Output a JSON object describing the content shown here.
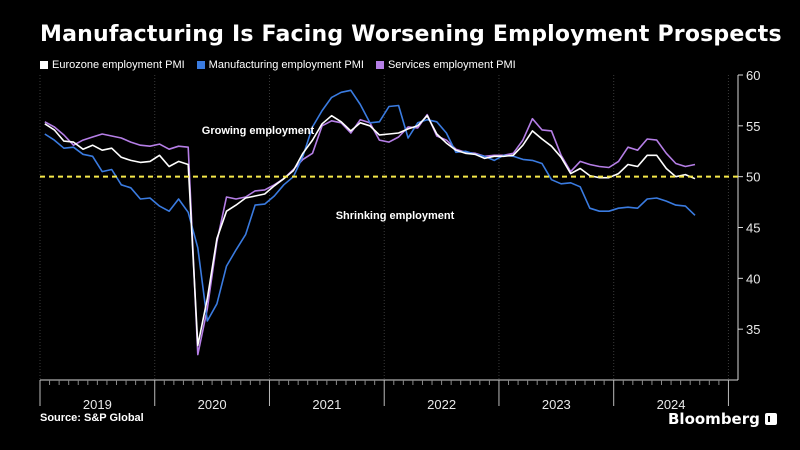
{
  "title": "Manufacturing Is Facing Worsening Employment Prospects",
  "source": "Source: S&P Global",
  "brand": "Bloomberg",
  "colors": {
    "background": "#000000",
    "eurozone": "#ffffff",
    "manufacturing": "#3a7be0",
    "services": "#b57ee6",
    "threshold": "#f5e84a",
    "axis": "#d8d8d8"
  },
  "chart_data": {
    "type": "line",
    "title": "Manufacturing Is Facing Worsening Employment Prospects",
    "xlabel": "",
    "ylabel": "",
    "ylim": [
      30,
      60
    ],
    "y_ticks": [
      35,
      40,
      45,
      50,
      55,
      60
    ],
    "x_year_labels": [
      "2019",
      "2020",
      "2021",
      "2022",
      "2023",
      "2024"
    ],
    "x_start": "2019-01",
    "threshold": 50,
    "annotations": [
      "Growing employment",
      "Shrinking employment"
    ],
    "series": [
      {
        "name": "Eurozone employment PMI",
        "color": "#ffffff",
        "values": [
          55.2,
          54.6,
          53.5,
          53.4,
          52.7,
          53.1,
          52.6,
          52.8,
          51.9,
          51.6,
          51.4,
          51.5,
          52.1,
          51.0,
          51.5,
          51.2,
          33.4,
          38.0,
          43.9,
          46.6,
          47.2,
          47.9,
          48.1,
          48.3,
          49.1,
          49.8,
          50.6,
          52.3,
          53.6,
          55.2,
          56.0,
          55.4,
          54.5,
          55.3,
          55.0,
          54.1,
          54.2,
          54.3,
          54.7,
          55.0,
          56.0,
          54.2,
          53.3,
          52.6,
          52.3,
          52.2,
          51.8,
          52.0,
          52.0,
          52.1,
          53.1,
          54.5,
          53.7,
          53.0,
          51.9,
          50.3,
          50.8,
          50.1,
          49.9,
          49.9,
          50.3,
          51.2,
          51.0,
          52.1,
          52.1,
          50.8,
          50.0,
          50.2,
          49.8
        ]
      },
      {
        "name": "Manufacturing employment PMI",
        "color": "#3a7be0",
        "values": [
          54.2,
          53.6,
          52.8,
          52.9,
          52.2,
          52.0,
          50.5,
          50.7,
          49.2,
          48.9,
          47.8,
          47.9,
          47.1,
          46.6,
          47.8,
          46.5,
          43.0,
          35.8,
          37.5,
          41.2,
          42.8,
          44.3,
          47.2,
          47.3,
          48.1,
          49.2,
          50.0,
          52.0,
          54.9,
          56.5,
          57.8,
          58.3,
          58.5,
          57.1,
          55.3,
          55.4,
          56.9,
          57.0,
          53.8,
          55.3,
          55.6,
          55.4,
          54.3,
          52.4,
          52.5,
          52.2,
          52.0,
          51.6,
          52.1,
          52.0,
          51.7,
          51.6,
          51.3,
          49.7,
          49.3,
          49.4,
          49.0,
          46.9,
          46.6,
          46.6,
          46.9,
          47.0,
          46.9,
          47.8,
          47.9,
          47.6,
          47.2,
          47.1,
          46.2
        ]
      },
      {
        "name": "Services employment PMI",
        "color": "#b57ee6",
        "values": [
          55.4,
          54.9,
          54.1,
          53.1,
          53.6,
          53.9,
          54.2,
          54.0,
          53.8,
          53.4,
          53.1,
          53.0,
          53.2,
          52.7,
          53.0,
          52.9,
          32.5,
          37.0,
          43.6,
          48.0,
          47.8,
          48.0,
          48.6,
          48.7,
          49.2,
          49.8,
          50.7,
          51.7,
          52.3,
          55.0,
          55.5,
          55.3,
          54.3,
          55.6,
          55.3,
          53.6,
          53.4,
          53.9,
          54.9,
          54.8,
          56.1,
          54.0,
          53.6,
          52.7,
          52.4,
          52.3,
          52.0,
          52.1,
          52.1,
          52.3,
          53.6,
          55.7,
          54.6,
          54.5,
          52.1,
          50.5,
          51.5,
          51.2,
          51.0,
          50.9,
          51.5,
          52.9,
          52.6,
          53.7,
          53.6,
          52.3,
          51.3,
          51.0,
          51.2
        ]
      }
    ]
  }
}
